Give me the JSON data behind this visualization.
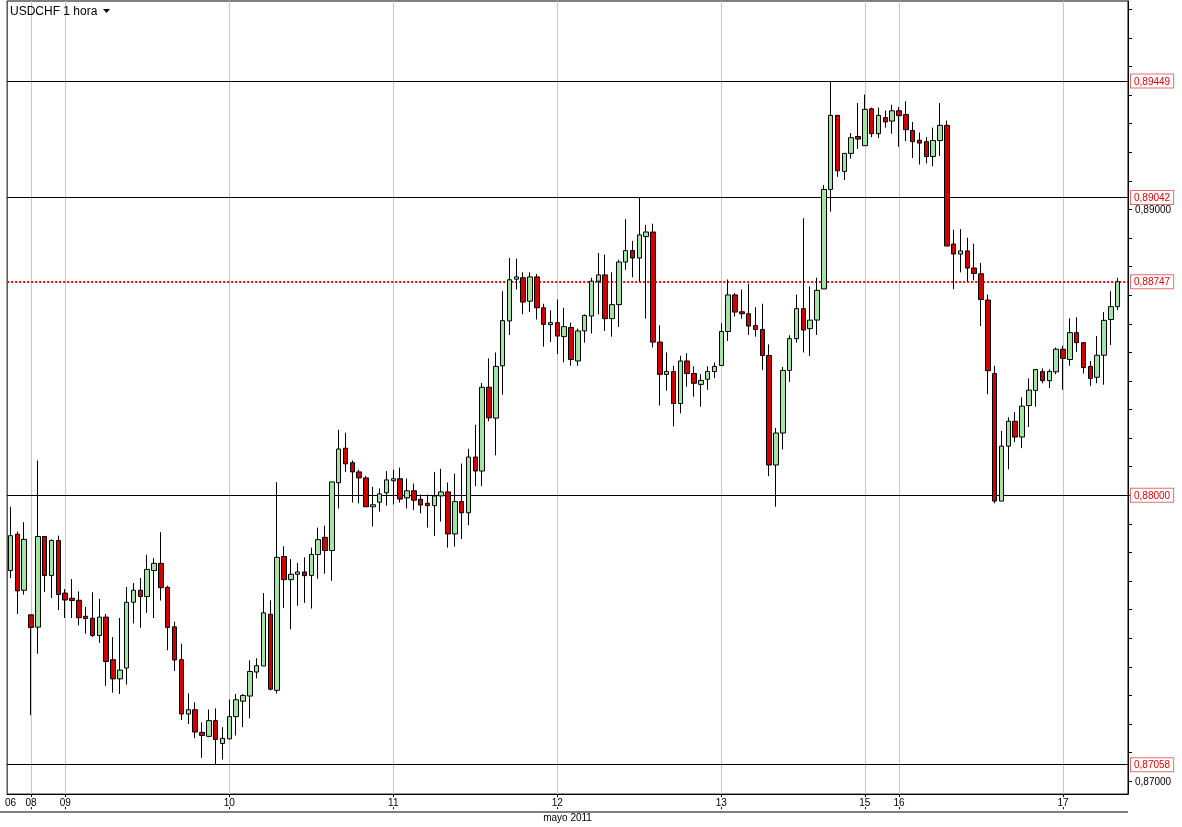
{
  "chart_data": {
    "type": "candlestick",
    "title": "USDCHF 1 hora",
    "xlabel": "mayo 2011",
    "categories": [
      "06",
      null,
      null,
      "08",
      null,
      null,
      null,
      null,
      "09",
      null,
      null,
      null,
      null,
      null,
      null,
      null,
      null,
      null,
      null,
      null,
      null,
      null,
      null,
      null,
      null,
      null,
      null,
      null,
      null,
      null,
      null,
      null,
      "10",
      null,
      null,
      null,
      null,
      null,
      null,
      null,
      null,
      null,
      null,
      null,
      null,
      null,
      null,
      null,
      null,
      null,
      null,
      null,
      null,
      null,
      null,
      null,
      "11",
      null,
      null,
      null,
      null,
      null,
      null,
      null,
      null,
      null,
      null,
      null,
      null,
      null,
      null,
      null,
      null,
      null,
      null,
      null,
      null,
      null,
      null,
      null,
      "12",
      null,
      null,
      null,
      null,
      null,
      null,
      null,
      null,
      null,
      null,
      null,
      null,
      null,
      null,
      null,
      null,
      null,
      null,
      null,
      null,
      null,
      null,
      null,
      "13",
      null,
      null,
      null,
      null,
      null,
      null,
      null,
      null,
      null,
      null,
      null,
      null,
      null,
      null,
      null,
      null,
      null,
      null,
      null,
      null,
      "15",
      null,
      null,
      null,
      null,
      "16",
      null,
      null,
      null,
      null,
      null,
      null,
      null,
      null,
      null,
      null,
      null,
      null,
      null,
      null,
      null,
      null,
      null,
      null,
      null,
      null,
      null,
      null,
      null,
      "17",
      null,
      null,
      null,
      null,
      null,
      null,
      null,
      null
    ],
    "ohlc": [
      [
        0.87737,
        0.8796,
        0.87711,
        0.87859
      ],
      [
        0.87864,
        0.87873,
        0.87585,
        0.87666
      ],
      [
        0.87668,
        0.87906,
        0.87653,
        0.87846
      ],
      [
        0.87582,
        0.87582,
        0.87231,
        0.87538
      ],
      [
        0.87539,
        0.88122,
        0.87446,
        0.87856
      ],
      [
        0.87856,
        0.87856,
        0.87662,
        0.8772
      ],
      [
        0.8772,
        0.87846,
        0.87641,
        0.87842
      ],
      [
        0.87842,
        0.87859,
        0.87599,
        0.87653
      ],
      [
        0.87658,
        0.87672,
        0.87571,
        0.87634
      ],
      [
        0.8764,
        0.87707,
        0.87571,
        0.87632
      ],
      [
        0.87633,
        0.87664,
        0.87545,
        0.87572
      ],
      [
        0.87577,
        0.8761,
        0.87516,
        0.87569
      ],
      [
        0.8757,
        0.87661,
        0.87504,
        0.8751
      ],
      [
        0.8751,
        0.87638,
        0.87484,
        0.87574
      ],
      [
        0.87574,
        0.87585,
        0.87334,
        0.87419
      ],
      [
        0.87425,
        0.87504,
        0.8731,
        0.87358
      ],
      [
        0.87358,
        0.87571,
        0.87305,
        0.87389
      ],
      [
        0.87396,
        0.87679,
        0.87338,
        0.87626
      ],
      [
        0.87626,
        0.87693,
        0.87552,
        0.87668
      ],
      [
        0.87668,
        0.87711,
        0.87537,
        0.87646
      ],
      [
        0.87646,
        0.87792,
        0.87589,
        0.87741
      ],
      [
        0.87737,
        0.8778,
        0.87571,
        0.87762
      ],
      [
        0.87762,
        0.87871,
        0.87632,
        0.87677
      ],
      [
        0.87678,
        0.87684,
        0.87458,
        0.87538
      ],
      [
        0.8754,
        0.87558,
        0.87386,
        0.87424
      ],
      [
        0.87425,
        0.87481,
        0.87214,
        0.87235
      ],
      [
        0.87235,
        0.87307,
        0.872,
        0.8725
      ],
      [
        0.8725,
        0.87276,
        0.87151,
        0.87172
      ],
      [
        0.87171,
        0.87206,
        0.87082,
        0.8716
      ],
      [
        0.87157,
        0.87251,
        0.87154,
        0.87212
      ],
      [
        0.87212,
        0.87255,
        0.87058,
        0.87146
      ],
      [
        0.87132,
        0.87189,
        0.87076,
        0.8715
      ],
      [
        0.87148,
        0.87286,
        0.87147,
        0.87226
      ],
      [
        0.87226,
        0.87305,
        0.8716,
        0.87285
      ],
      [
        0.8728,
        0.87305,
        0.87189,
        0.873
      ],
      [
        0.87298,
        0.87423,
        0.8722,
        0.87384
      ],
      [
        0.87382,
        0.8743,
        0.8736,
        0.87404
      ],
      [
        0.87403,
        0.87658,
        0.87403,
        0.87589
      ],
      [
        0.87584,
        0.87633,
        0.87318,
        0.87322
      ],
      [
        0.87318,
        0.88046,
        0.87307,
        0.87783
      ],
      [
        0.87786,
        0.87822,
        0.87606,
        0.87705
      ],
      [
        0.87705,
        0.87777,
        0.87531,
        0.87724
      ],
      [
        0.87724,
        0.87763,
        0.87614,
        0.87732
      ],
      [
        0.87732,
        0.87783,
        0.87624,
        0.87719
      ],
      [
        0.8772,
        0.87817,
        0.87604,
        0.87793
      ],
      [
        0.87793,
        0.87887,
        0.87708,
        0.87845
      ],
      [
        0.87853,
        0.87894,
        0.87726,
        0.87807
      ],
      [
        0.87807,
        0.88047,
        0.87701,
        0.88047
      ],
      [
        0.88044,
        0.88229,
        0.87954,
        0.88162
      ],
      [
        0.88165,
        0.88219,
        0.88082,
        0.8811
      ],
      [
        0.88114,
        0.88122,
        0.87975,
        0.88082
      ],
      [
        0.88082,
        0.8809,
        0.87972,
        0.88061
      ],
      [
        0.88061,
        0.88068,
        0.8796,
        0.8796
      ],
      [
        0.8796,
        0.8803,
        0.87891,
        0.87967
      ],
      [
        0.87976,
        0.88024,
        0.87943,
        0.88005
      ],
      [
        0.88009,
        0.88085,
        0.87964,
        0.88054
      ],
      [
        0.88051,
        0.8809,
        0.87968,
        0.88058
      ],
      [
        0.88058,
        0.88097,
        0.87975,
        0.87987
      ],
      [
        0.87991,
        0.88059,
        0.87954,
        0.88016
      ],
      [
        0.88016,
        0.88041,
        0.87948,
        0.87983
      ],
      [
        0.87986,
        0.88003,
        0.87937,
        0.87966
      ],
      [
        0.87972,
        0.88003,
        0.87887,
        0.87964
      ],
      [
        0.87964,
        0.88082,
        0.87858,
        0.87998
      ],
      [
        0.87998,
        0.88093,
        0.87908,
        0.88012
      ],
      [
        0.88012,
        0.88045,
        0.87817,
        0.87865
      ],
      [
        0.87865,
        0.88076,
        0.87821,
        0.87978
      ],
      [
        0.87978,
        0.88111,
        0.87847,
        0.87939
      ],
      [
        0.87939,
        0.88163,
        0.87896,
        0.88134
      ],
      [
        0.88134,
        0.88247,
        0.88032,
        0.88085
      ],
      [
        0.88085,
        0.88393,
        0.88032,
        0.88378
      ],
      [
        0.88378,
        0.88479,
        0.88259,
        0.88271
      ],
      [
        0.8827,
        0.885,
        0.8814,
        0.88451
      ],
      [
        0.88453,
        0.88714,
        0.88352,
        0.88611
      ],
      [
        0.8861,
        0.8883,
        0.88561,
        0.88754
      ],
      [
        0.88756,
        0.88828,
        0.8872,
        0.88764
      ],
      [
        0.88761,
        0.8878,
        0.88633,
        0.88676
      ],
      [
        0.88679,
        0.8878,
        0.88641,
        0.88764
      ],
      [
        0.88764,
        0.88774,
        0.88615,
        0.88656
      ],
      [
        0.88656,
        0.8867,
        0.8852,
        0.88598
      ],
      [
        0.88597,
        0.88647,
        0.88536,
        0.88604
      ],
      [
        0.88604,
        0.88685,
        0.88494,
        0.88557
      ],
      [
        0.88555,
        0.88656,
        0.88465,
        0.8859
      ],
      [
        0.88587,
        0.88604,
        0.88453,
        0.88475
      ],
      [
        0.8847,
        0.88583,
        0.88453,
        0.88575
      ],
      [
        0.88575,
        0.88633,
        0.88534,
        0.88629
      ],
      [
        0.88627,
        0.88761,
        0.88566,
        0.88749
      ],
      [
        0.88749,
        0.88848,
        0.88633,
        0.88771
      ],
      [
        0.88771,
        0.88842,
        0.88575,
        0.88618
      ],
      [
        0.88618,
        0.8878,
        0.88555,
        0.88667
      ],
      [
        0.88667,
        0.88824,
        0.88589,
        0.88816
      ],
      [
        0.88816,
        0.88966,
        0.88789,
        0.88856
      ],
      [
        0.88856,
        0.8889,
        0.88763,
        0.8883
      ],
      [
        0.8883,
        0.89042,
        0.88749,
        0.88911
      ],
      [
        0.88905,
        0.88946,
        0.88618,
        0.88921
      ],
      [
        0.88921,
        0.8895,
        0.88517,
        0.88536
      ],
      [
        0.88536,
        0.88595,
        0.88314,
        0.88423
      ],
      [
        0.88423,
        0.885,
        0.88366,
        0.88433
      ],
      [
        0.88433,
        0.88453,
        0.88241,
        0.88321
      ],
      [
        0.88321,
        0.88488,
        0.88287,
        0.8847
      ],
      [
        0.8847,
        0.88497,
        0.8838,
        0.88426
      ],
      [
        0.88426,
        0.88451,
        0.88345,
        0.88392
      ],
      [
        0.88388,
        0.88424,
        0.8831,
        0.88402
      ],
      [
        0.88406,
        0.88451,
        0.88369,
        0.88433
      ],
      [
        0.88433,
        0.88465,
        0.8841,
        0.88451
      ],
      [
        0.88454,
        0.88602,
        0.88454,
        0.88573
      ],
      [
        0.88573,
        0.88755,
        0.8854,
        0.88701
      ],
      [
        0.88701,
        0.88708,
        0.88625,
        0.88641
      ],
      [
        0.88642,
        0.8872,
        0.88618,
        0.88635
      ],
      [
        0.88635,
        0.8874,
        0.88561,
        0.88592
      ],
      [
        0.88594,
        0.88658,
        0.88555,
        0.8858
      ],
      [
        0.8858,
        0.8867,
        0.88439,
        0.88489
      ],
      [
        0.88489,
        0.88528,
        0.88067,
        0.88106
      ],
      [
        0.88106,
        0.88236,
        0.8796,
        0.88218
      ],
      [
        0.88218,
        0.88449,
        0.88161,
        0.88437
      ],
      [
        0.88437,
        0.8856,
        0.88397,
        0.88548
      ],
      [
        0.88548,
        0.88702,
        0.88534,
        0.88653
      ],
      [
        0.88653,
        0.88969,
        0.885,
        0.88578
      ],
      [
        0.88583,
        0.88731,
        0.88488,
        0.88613
      ],
      [
        0.88613,
        0.88761,
        0.88561,
        0.88717
      ],
      [
        0.88722,
        0.89085,
        0.88722,
        0.8907
      ],
      [
        0.8907,
        0.89449,
        0.88992,
        0.89329
      ],
      [
        0.89329,
        0.89329,
        0.89114,
        0.89135
      ],
      [
        0.89133,
        0.89196,
        0.89103,
        0.89196
      ],
      [
        0.89196,
        0.89267,
        0.89178,
        0.89251
      ],
      [
        0.89255,
        0.89372,
        0.89212,
        0.89246
      ],
      [
        0.89223,
        0.89402,
        0.89223,
        0.8935
      ],
      [
        0.89352,
        0.89356,
        0.89253,
        0.89265
      ],
      [
        0.89265,
        0.89356,
        0.8925,
        0.89329
      ],
      [
        0.89321,
        0.89346,
        0.89286,
        0.89306
      ],
      [
        0.89309,
        0.89366,
        0.89265,
        0.89345
      ],
      [
        0.89345,
        0.89358,
        0.89219,
        0.89328
      ],
      [
        0.89332,
        0.89378,
        0.89239,
        0.89279
      ],
      [
        0.89276,
        0.89306,
        0.8918,
        0.89237
      ],
      [
        0.89242,
        0.89269,
        0.89157,
        0.89232
      ],
      [
        0.89237,
        0.89253,
        0.89161,
        0.89185
      ],
      [
        0.89185,
        0.89286,
        0.89151,
        0.89241
      ],
      [
        0.89241,
        0.89372,
        0.89187,
        0.89294
      ],
      [
        0.89294,
        0.89311,
        0.88872,
        0.88872
      ],
      [
        0.88879,
        0.88929,
        0.88721,
        0.88844
      ],
      [
        0.88844,
        0.88931,
        0.8878,
        0.88855
      ],
      [
        0.88855,
        0.88901,
        0.88748,
        0.88795
      ],
      [
        0.88795,
        0.8888,
        0.88752,
        0.88776
      ],
      [
        0.88775,
        0.88813,
        0.88592,
        0.88685
      ],
      [
        0.88683,
        0.88702,
        0.88354,
        0.88436
      ],
      [
        0.88426,
        0.88453,
        0.87972,
        0.8798
      ],
      [
        0.8798,
        0.88225,
        0.8798,
        0.88172
      ],
      [
        0.88172,
        0.88273,
        0.88091,
        0.88259
      ],
      [
        0.88259,
        0.88291,
        0.88186,
        0.88204
      ],
      [
        0.88204,
        0.88343,
        0.88165,
        0.88312
      ],
      [
        0.88314,
        0.88409,
        0.88239,
        0.88368
      ],
      [
        0.88367,
        0.8844,
        0.8831,
        0.8844
      ],
      [
        0.88433,
        0.88444,
        0.88392,
        0.88401
      ],
      [
        0.88401,
        0.88441,
        0.88375,
        0.88433
      ],
      [
        0.88432,
        0.88517,
        0.88424,
        0.88511
      ],
      [
        0.88511,
        0.88523,
        0.88369,
        0.88479
      ],
      [
        0.88475,
        0.88619,
        0.88453,
        0.88569
      ],
      [
        0.88569,
        0.88623,
        0.88502,
        0.88534
      ],
      [
        0.88534,
        0.88534,
        0.88426,
        0.88447
      ],
      [
        0.88451,
        0.8847,
        0.88383,
        0.88409
      ],
      [
        0.88413,
        0.88557,
        0.88392,
        0.8849
      ],
      [
        0.8849,
        0.88641,
        0.88387,
        0.88612
      ],
      [
        0.88615,
        0.88714,
        0.88526,
        0.8866
      ],
      [
        0.8866,
        0.88761,
        0.88648,
        0.88747
      ]
    ],
    "ylim": [
      0.86955,
      0.89729
    ],
    "yticks": [
      {
        "value": 0.87,
        "label": "0,87000"
      },
      {
        "value": 0.871,
        "label": null
      },
      {
        "value": 0.872,
        "label": null
      },
      {
        "value": 0.873,
        "label": null
      },
      {
        "value": 0.874,
        "label": null
      },
      {
        "value": 0.875,
        "label": null
      },
      {
        "value": 0.876,
        "label": null
      },
      {
        "value": 0.877,
        "label": null
      },
      {
        "value": 0.878,
        "label": null
      },
      {
        "value": 0.879,
        "label": null
      },
      {
        "value": 0.88,
        "label": null
      },
      {
        "value": 0.881,
        "label": null
      },
      {
        "value": 0.882,
        "label": null
      },
      {
        "value": 0.883,
        "label": null
      },
      {
        "value": 0.884,
        "label": null
      },
      {
        "value": 0.885,
        "label": null
      },
      {
        "value": 0.886,
        "label": null
      },
      {
        "value": 0.887,
        "label": null
      },
      {
        "value": 0.888,
        "label": null
      },
      {
        "value": 0.889,
        "label": null
      },
      {
        "value": 0.89,
        "label": "0,89000"
      },
      {
        "value": 0.891,
        "label": null
      },
      {
        "value": 0.892,
        "label": null
      },
      {
        "value": 0.893,
        "label": null
      },
      {
        "value": 0.894,
        "label": null
      },
      {
        "value": 0.895,
        "label": null
      },
      {
        "value": 0.896,
        "label": null
      },
      {
        "value": 0.897,
        "label": null
      }
    ],
    "ref_lines": [
      {
        "axis": "y",
        "value": 0.89449,
        "label": "0,89449",
        "color": "#000000"
      },
      {
        "axis": "y",
        "value": 0.89042,
        "label": "0,89042",
        "color": "#000000"
      },
      {
        "axis": "y",
        "value": 0.88747,
        "label": "0,88747",
        "color": "#ff0000",
        "line_style": "dotted"
      },
      {
        "axis": "y",
        "value": 0.88,
        "label": "0,88000",
        "color": "#000000"
      },
      {
        "axis": "y",
        "value": 0.87058,
        "label": "0,87058",
        "color": "#000000"
      }
    ],
    "grid": "x"
  }
}
